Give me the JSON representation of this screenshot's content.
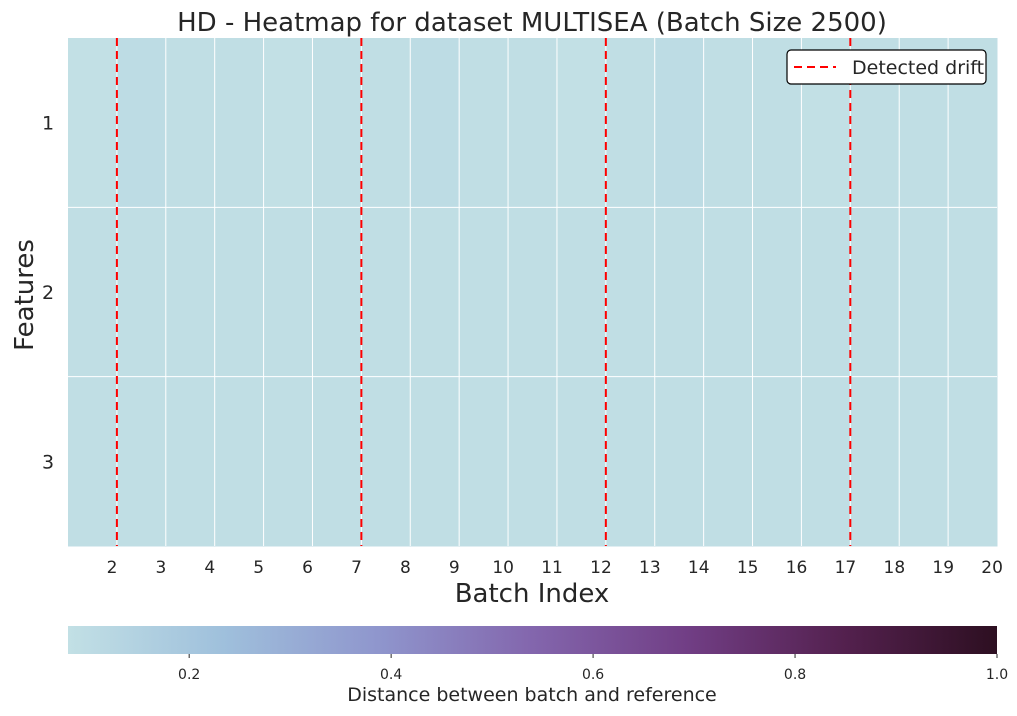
{
  "chart_data": {
    "type": "heatmap",
    "title": "HD - Heatmap for dataset MULTISEA (Batch Size 2500)",
    "xlabel": "Batch Index",
    "ylabel": "Features",
    "x": [
      2,
      3,
      4,
      5,
      6,
      7,
      8,
      9,
      10,
      11,
      12,
      13,
      14,
      15,
      16,
      17,
      18,
      19,
      20
    ],
    "y": [
      "1",
      "2",
      "3"
    ],
    "values": [
      [
        0.08,
        0.1,
        0.09,
        0.09,
        0.08,
        0.09,
        0.09,
        0.1,
        0.09,
        0.09,
        0.08,
        0.09,
        0.1,
        0.09,
        0.09,
        0.08,
        0.09,
        0.09,
        0.09
      ],
      [
        0.09,
        0.09,
        0.09,
        0.09,
        0.09,
        0.09,
        0.09,
        0.09,
        0.09,
        0.09,
        0.09,
        0.09,
        0.09,
        0.09,
        0.09,
        0.09,
        0.09,
        0.09,
        0.09
      ],
      [
        0.09,
        0.09,
        0.09,
        0.09,
        0.09,
        0.09,
        0.09,
        0.09,
        0.09,
        0.09,
        0.09,
        0.09,
        0.09,
        0.09,
        0.09,
        0.09,
        0.09,
        0.09,
        0.09
      ]
    ],
    "drift_positions": [
      2.5,
      7.5,
      12.5,
      17.5
    ],
    "drift_color": "#ff0000",
    "legend": {
      "label": "Detected drift",
      "placement": "top-right"
    },
    "colorbar": {
      "label": "Distance between batch and reference",
      "range": [
        0.08,
        1.0
      ],
      "ticks": [
        0.2,
        0.4,
        0.6,
        0.8,
        1.0
      ],
      "tick_labels": [
        "0.2",
        "0.4",
        "0.6",
        "0.8",
        "1.0"
      ],
      "colors": [
        "#c2e0e5",
        "#9fc0dc",
        "#8f96cd",
        "#8366ad",
        "#713e85",
        "#54214f",
        "#2d0f21"
      ]
    },
    "grid": true
  }
}
